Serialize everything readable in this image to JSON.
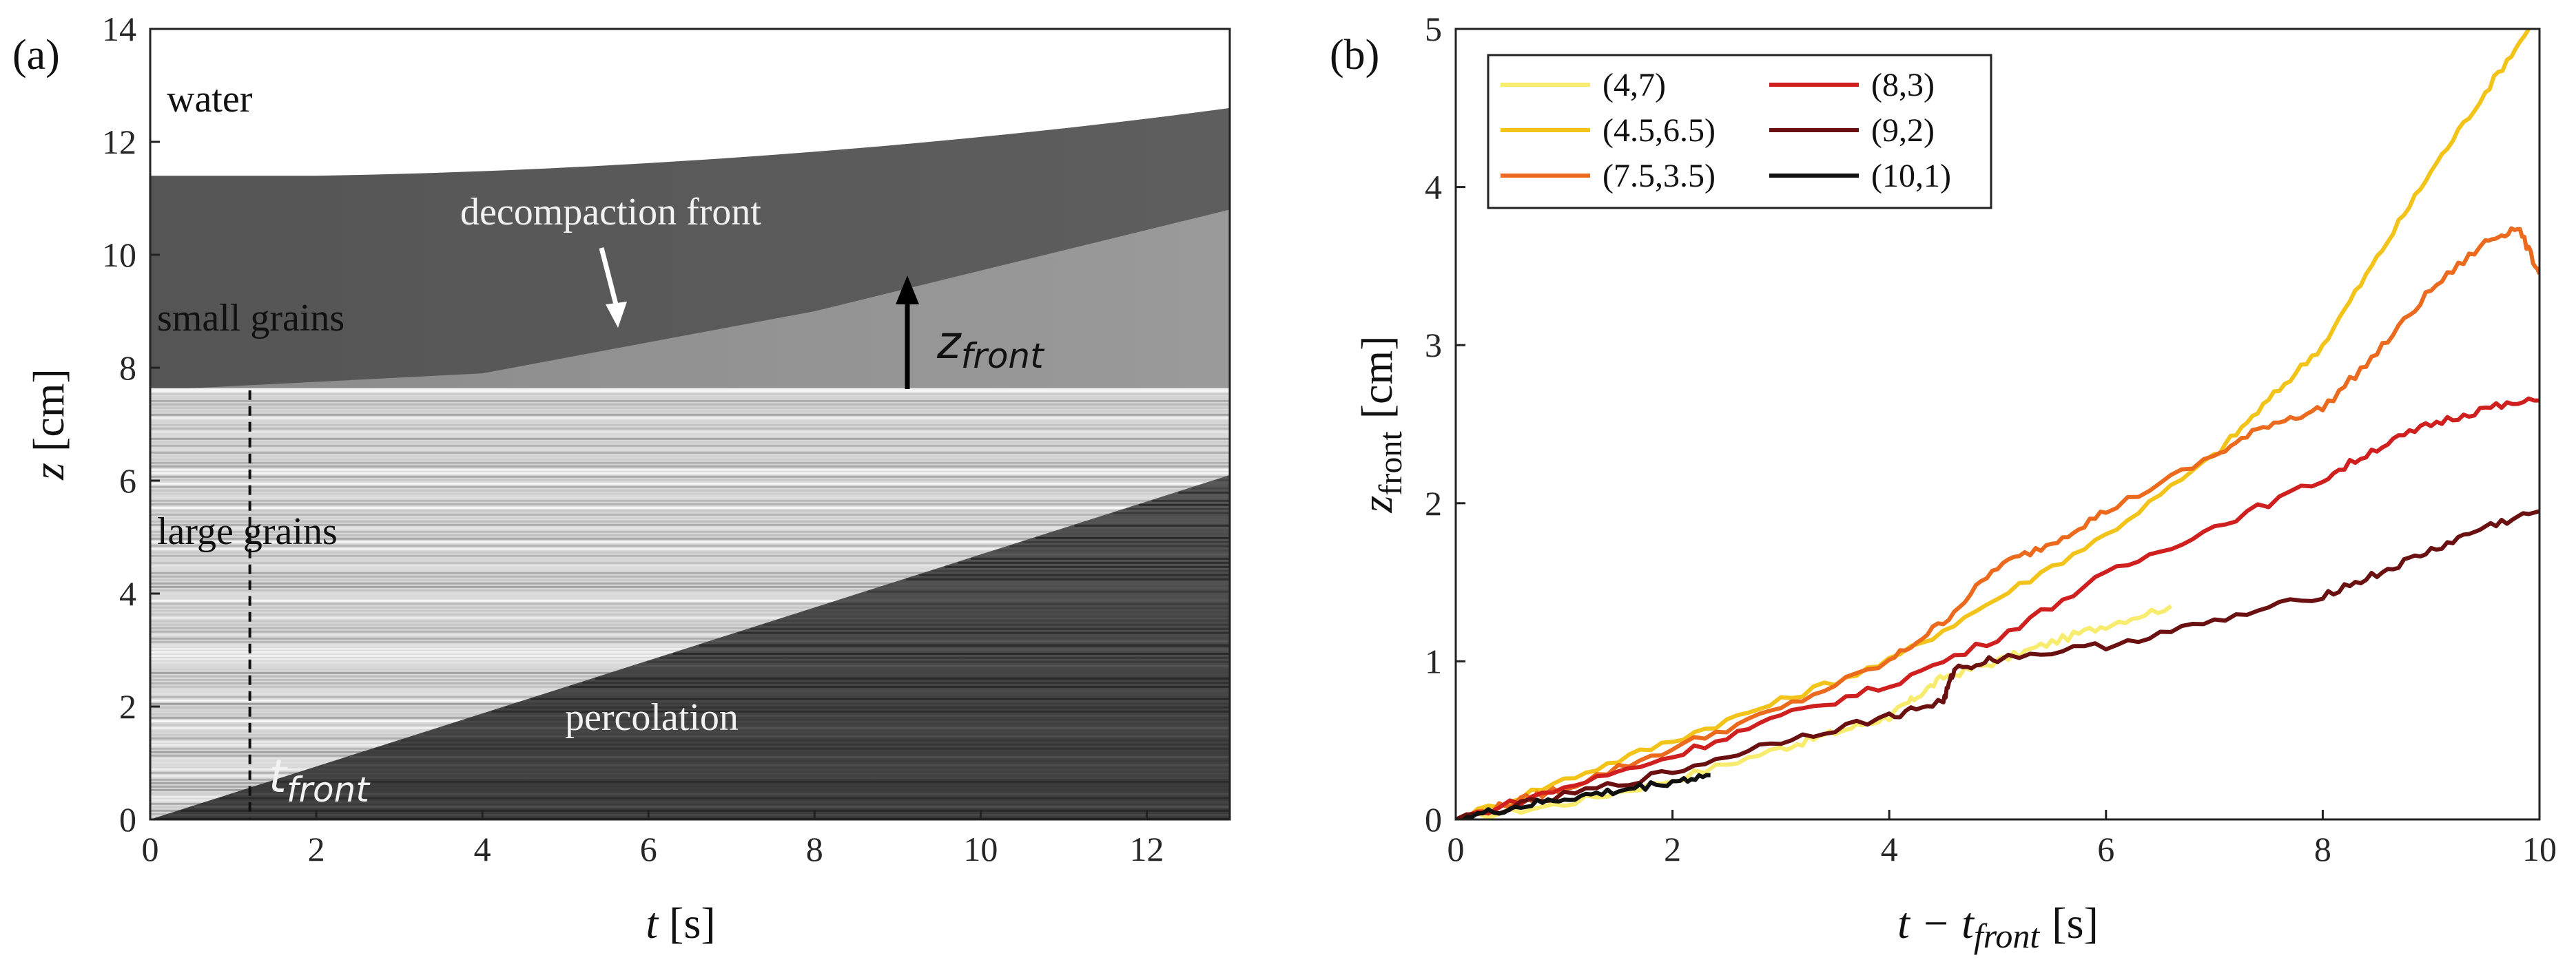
{
  "chart_data": [
    {
      "panel": "(a)",
      "type": "heatmap",
      "description_kind": "spatiotemporal grayscale image",
      "xlabel_symbol": "t",
      "xlabel_unit": "[s]",
      "ylabel_symbol": "z",
      "ylabel_unit": "[cm]",
      "xlim": [
        0,
        13
      ],
      "ylim": [
        0,
        14
      ],
      "xticks": [
        "0",
        "2",
        "4",
        "6",
        "8",
        "10",
        "12"
      ],
      "yticks": [
        "0",
        "2",
        "4",
        "6",
        "8",
        "10",
        "12",
        "14"
      ],
      "annotations": {
        "water": "water",
        "decompaction": "decompaction front",
        "small": "small grains",
        "large": "large grains",
        "percolation": "percolation",
        "zfront_main": "z",
        "zfront_sub": "front",
        "tfront_main": "t",
        "tfront_sub": "front"
      },
      "regions": {
        "small_grain_top_start": 11.4,
        "small_grain_top_end": 12.6,
        "interface_z": 7.6,
        "decompaction_front": [
          [
            0,
            7.6
          ],
          [
            4,
            7.9
          ],
          [
            8,
            9.0
          ],
          [
            13,
            10.8
          ]
        ],
        "percolation_front": [
          [
            0,
            0
          ],
          [
            13,
            6.1
          ]
        ],
        "t_front_marker": 1.2
      }
    },
    {
      "panel": "(b)",
      "type": "line",
      "xlabel_main": "t − t",
      "xlabel_sub": "front",
      "xlabel_unit": "[s]",
      "ylabel_main": "z",
      "ylabel_sub": "front",
      "ylabel_unit": "[cm]",
      "xlim": [
        0,
        10
      ],
      "ylim": [
        0,
        5
      ],
      "xticks": [
        "0",
        "2",
        "4",
        "6",
        "8",
        "10"
      ],
      "yticks": [
        "0",
        "1",
        "2",
        "3",
        "4",
        "5"
      ],
      "series": [
        {
          "name": "(4,7)",
          "color": "#f7ec6e",
          "x": [
            0,
            1,
            2,
            3,
            3.5,
            4,
            4.2,
            4.5,
            5,
            5.5,
            6,
            6.6
          ],
          "y": [
            0,
            0.1,
            0.25,
            0.45,
            0.55,
            0.65,
            0.75,
            0.9,
            1.0,
            1.12,
            1.23,
            1.35
          ]
        },
        {
          "name": "(4.5,6.5)",
          "color": "#f2c318",
          "x": [
            0,
            1,
            2,
            3,
            4,
            5,
            6,
            7,
            7.5,
            8,
            8.5,
            9,
            9.5,
            9.9
          ],
          "y": [
            0,
            0.25,
            0.5,
            0.75,
            1.0,
            1.4,
            1.8,
            2.3,
            2.65,
            3.0,
            3.55,
            4.1,
            4.6,
            5.0
          ]
        },
        {
          "name": "(7.5,3.5)",
          "color": "#ec6a1e",
          "x": [
            0,
            0.5,
            1,
            2,
            3,
            4,
            4.5,
            5,
            5.5,
            6,
            7,
            7.5,
            8,
            8.5,
            9,
            9.5,
            9.8,
            10
          ],
          "y": [
            0,
            0.1,
            0.2,
            0.45,
            0.7,
            1.0,
            1.25,
            1.6,
            1.75,
            1.95,
            2.3,
            2.5,
            2.6,
            2.95,
            3.35,
            3.65,
            3.75,
            3.45
          ]
        },
        {
          "name": "(8,3)",
          "color": "#cf1f1f",
          "x": [
            0,
            1,
            2,
            3,
            4,
            5,
            6,
            7,
            8,
            8.5,
            9,
            9.5,
            10
          ],
          "y": [
            0,
            0.2,
            0.4,
            0.65,
            0.85,
            1.15,
            1.55,
            1.85,
            2.15,
            2.35,
            2.5,
            2.6,
            2.65
          ]
        },
        {
          "name": "(9,2)",
          "color": "#6a1010",
          "x": [
            0,
            1,
            2,
            3,
            4,
            4.5,
            4.6,
            5,
            6,
            7,
            8,
            8.5,
            9,
            9.5,
            10
          ],
          "y": [
            0,
            0.15,
            0.3,
            0.5,
            0.65,
            0.75,
            0.95,
            1.02,
            1.1,
            1.25,
            1.42,
            1.55,
            1.7,
            1.85,
            1.95
          ]
        },
        {
          "name": "(10,1)",
          "color": "#111111",
          "x": [
            0,
            0.5,
            1,
            1.5,
            2,
            2.35
          ],
          "y": [
            0,
            0.07,
            0.13,
            0.18,
            0.24,
            0.28
          ]
        }
      ]
    }
  ]
}
